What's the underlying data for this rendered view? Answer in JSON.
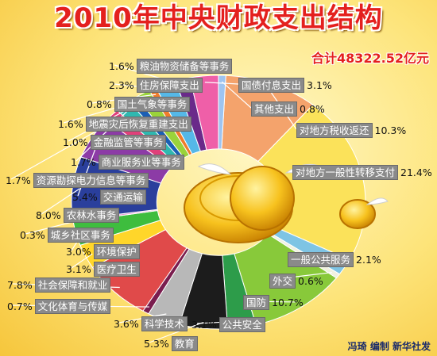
{
  "title": "2010年中央财政支出结构",
  "total": "合计48322.52亿元",
  "credit": "冯琦 编制 新华社发",
  "chart_data": {
    "type": "pie",
    "title": "2010年中央财政支出结构",
    "slices": [
      {
        "name": "对地方税收返还",
        "value": 10.3,
        "label": "10.3%",
        "color": "#f4a36c"
      },
      {
        "name": "对地方一般性转移支付",
        "value": 21.4,
        "label": "21.4%",
        "color": "#fbe25a"
      },
      {
        "name": "一般公共服务",
        "value": 2.1,
        "label": "2.1%",
        "color": "#7ec4e4"
      },
      {
        "name": "外交",
        "value": 0.6,
        "label": "0.6%",
        "color": "#f1f1e0"
      },
      {
        "name": "国防",
        "value": 10.7,
        "label": "10.7%",
        "color": "#88c93a"
      },
      {
        "name": "公共安全",
        "value": 3.1,
        "label": "3.1%",
        "color": "#2d9c4a"
      },
      {
        "name": "教育",
        "value": 5.3,
        "label": "5.3%",
        "color": "#1c1c1c"
      },
      {
        "name": "科学技术",
        "value": 3.6,
        "label": "3.6%",
        "color": "#b8b8b8"
      },
      {
        "name": "文化体育与传媒",
        "value": 0.7,
        "label": "0.7%",
        "color": "#7a1d4e"
      },
      {
        "name": "社会保障和就业",
        "value": 7.8,
        "label": "7.8%",
        "color": "#e04a4a"
      },
      {
        "name": "医疗卫生",
        "value": 3.1,
        "label": "3.1%",
        "color": "#ffd62a"
      },
      {
        "name": "环境保护",
        "value": 3.0,
        "label": "3.0%",
        "color": "#3ebd3e"
      },
      {
        "name": "城乡社区事务",
        "value": 0.3,
        "label": "0.3%",
        "color": "#e58bd0"
      },
      {
        "name": "农林水事务",
        "value": 8.0,
        "label": "8.0%",
        "color": "#2a3f9c"
      },
      {
        "name": "交通运输",
        "value": 5.4,
        "label": "5.4%",
        "color": "#8c3ba6"
      },
      {
        "name": "资源勘探电力信息等事务",
        "value": 1.7,
        "label": "1.7%",
        "color": "#e0407a"
      },
      {
        "name": "商业服务业等事务",
        "value": 1.7,
        "label": "1.7%",
        "color": "#2fb8b0"
      },
      {
        "name": "金融监管等事务",
        "value": 1.0,
        "label": "1.0%",
        "color": "#1a5fb4"
      },
      {
        "name": "地震灾后恢复重建支出",
        "value": 1.6,
        "label": "1.6%",
        "color": "#9ad33a"
      },
      {
        "name": "国土气象等事务",
        "value": 0.8,
        "label": "0.8%",
        "color": "#f07c2a"
      },
      {
        "name": "住房保障支出",
        "value": 2.3,
        "label": "2.3%",
        "color": "#55b8e8"
      },
      {
        "name": "粮油物资储备等事务",
        "value": 1.6,
        "label": "1.6%",
        "color": "#6a2a8a"
      },
      {
        "name": "国债付息支出",
        "value": 3.1,
        "label": "3.1%",
        "color": "#ef5fa8"
      },
      {
        "name": "其他支出",
        "value": 0.8,
        "label": "0.8%",
        "color": "#9ec4f0"
      }
    ]
  }
}
